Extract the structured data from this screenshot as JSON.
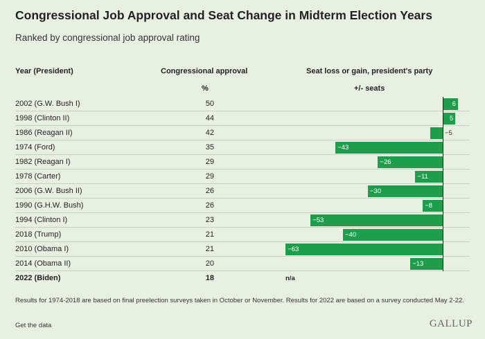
{
  "title": "Congressional Job Approval and Seat Change in Midterm Election Years",
  "subtitle": "Ranked by congressional job approval rating",
  "headers": {
    "year": "Year (President)",
    "approval": "Congressional approval",
    "approval_unit": "%",
    "seats": "Seat loss or gain, president's party",
    "seats_unit": "+/- seats"
  },
  "chart_data": {
    "type": "bar",
    "title": "Congressional Job Approval and Seat Change in Midterm Election Years",
    "categories": [
      "2002 (G.W. Bush I)",
      "1998 (Clinton II)",
      "1986 (Reagan II)",
      "1974 (Ford)",
      "1982 (Reagan I)",
      "1978 (Carter)",
      "2006 (G.W. Bush II)",
      "1990 (G.H.W. Bush)",
      "1994 (Clinton I)",
      "2018 (Trump)",
      "2010 (Obama I)",
      "2014 (Obama II)",
      "2022 (Biden)"
    ],
    "series": [
      {
        "name": "Congressional approval %",
        "values": [
          50,
          44,
          42,
          35,
          29,
          29,
          26,
          26,
          23,
          21,
          21,
          20,
          18
        ]
      },
      {
        "name": "+/- seats",
        "values": [
          6,
          5,
          -5,
          -43,
          -26,
          -11,
          -30,
          -8,
          -53,
          -40,
          -63,
          -13,
          null
        ]
      }
    ],
    "seat_labels": [
      "6",
      "5",
      "−5",
      "−43",
      "−26",
      "−11",
      "−30",
      "−8",
      "−53",
      "−40",
      "−63",
      "−13",
      "n/a"
    ],
    "bold_rows": [
      12
    ]
  },
  "footnote": "Results for 1974-2018 are based on final preelection surveys taken in October or November. Results for 2022 are based on a survey conducted May 2-22.",
  "get_data": "Get the data",
  "logo": "GALLUP",
  "colors": {
    "bar": "#1e9e4c",
    "background": "#e8f0e2"
  }
}
